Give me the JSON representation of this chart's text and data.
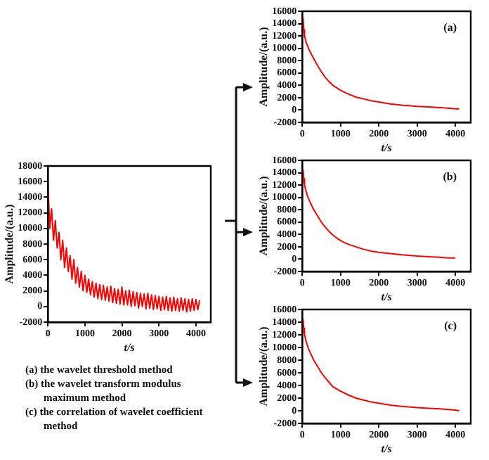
{
  "chart_data": [
    {
      "type": "line",
      "xlabel": "t/s",
      "ylabel": "Amplitude/(a.u.)",
      "x": [
        0,
        50,
        100,
        150,
        200,
        250,
        300,
        350,
        400,
        450,
        500,
        550,
        600,
        650,
        700,
        750,
        800,
        850,
        900,
        950,
        1000,
        1050,
        1100,
        1150,
        1200,
        1250,
        1300,
        1350,
        1400,
        1450,
        1500,
        1550,
        1600,
        1650,
        1700,
        1750,
        1800,
        1850,
        1900,
        1950,
        2000,
        2050,
        2100,
        2150,
        2200,
        2250,
        2300,
        2350,
        2400,
        2450,
        2500,
        2550,
        2600,
        2650,
        2700,
        2750,
        2800,
        2850,
        2900,
        2950,
        3000,
        3050,
        3100,
        3150,
        3200,
        3250,
        3300,
        3350,
        3400,
        3450,
        3500,
        3550,
        3600,
        3650,
        3700,
        3750,
        3800,
        3850,
        3900,
        3950,
        4000,
        4050,
        4100
      ],
      "series": [
        {
          "color": "#ff0000",
          "values": [
            16000,
            10000,
            12500,
            8500,
            11000,
            7500,
            9500,
            6000,
            8500,
            5000,
            7500,
            4500,
            6500,
            3500,
            6000,
            3000,
            5000,
            2500,
            4500,
            2000,
            4000,
            1800,
            3500,
            1500,
            3200,
            1200,
            3000,
            1000,
            2800,
            900,
            2700,
            800,
            2500,
            700,
            2600,
            500,
            2300,
            400,
            2200,
            300,
            2500,
            200,
            2000,
            200,
            2100,
            0,
            1900,
            100,
            1800,
            -200,
            1700,
            0,
            1600,
            -300,
            1700,
            -200,
            1500,
            -400,
            1400,
            -300,
            1300,
            -500,
            1200,
            -400,
            1300,
            -500,
            1100,
            -600,
            1200,
            -500,
            1000,
            -600,
            1100,
            -500,
            1000,
            -700,
            900,
            -600,
            1000,
            -500,
            900,
            -400,
            800
          ]
        }
      ],
      "xlim": [
        0,
        4400
      ],
      "xticks": [
        0,
        1000,
        2000,
        3000,
        4000
      ],
      "ylim": [
        -2000,
        18000
      ],
      "yticks": [
        -2000,
        0,
        2000,
        4000,
        6000,
        8000,
        10000,
        12000,
        14000,
        16000,
        18000
      ],
      "grid": false,
      "legend": false,
      "marker": "none",
      "annotations": [
        "(a) the wavelet threshold method",
        "(b) the wavelet transform modulus maximum method",
        "(c) the correlation of wavelet coefficient method"
      ]
    },
    {
      "type": "line",
      "xlabel": "t/s",
      "ylabel": "Amplitude/(a.u.)",
      "x": [
        20,
        40,
        60,
        100,
        150,
        200,
        300,
        400,
        500,
        600,
        700,
        800,
        1000,
        1200,
        1400,
        1600,
        1800,
        2000,
        2300,
        2600,
        3000,
        3300,
        3600,
        3800,
        4000,
        4100
      ],
      "series": [
        {
          "color": "#ff0000",
          "values": [
            15000,
            13000,
            12000,
            11000,
            10200,
            9500,
            8300,
            7200,
            6200,
            5300,
            4600,
            4000,
            3200,
            2600,
            2100,
            1800,
            1500,
            1300,
            1000,
            800,
            600,
            500,
            400,
            300,
            200,
            200
          ]
        }
      ],
      "xlim": [
        0,
        4400
      ],
      "xticks": [
        0,
        1000,
        2000,
        3000,
        4000
      ],
      "ylim": [
        -2000,
        16000
      ],
      "yticks": [
        -2000,
        0,
        2000,
        4000,
        6000,
        8000,
        10000,
        12000,
        14000,
        16000
      ],
      "grid": false,
      "legend": false,
      "marker": "none",
      "annotations": [
        "(a)"
      ]
    },
    {
      "type": "line",
      "xlabel": "t/s",
      "ylabel": "Amplitude/(a.u.)",
      "x": [
        20,
        40,
        60,
        100,
        150,
        200,
        300,
        400,
        500,
        600,
        700,
        800,
        1000,
        1200,
        1400,
        1600,
        1800,
        2000,
        2300,
        2600,
        3000,
        3300,
        3600,
        3800,
        4000
      ],
      "series": [
        {
          "color": "#ff0000",
          "values": [
            14500,
            13000,
            12000,
            11000,
            10000,
            9300,
            8000,
            7000,
            6000,
            5200,
            4500,
            3900,
            3000,
            2400,
            2000,
            1600,
            1300,
            1100,
            900,
            700,
            500,
            400,
            300,
            200,
            200
          ]
        }
      ],
      "xlim": [
        0,
        4400
      ],
      "xticks": [
        0,
        1000,
        2000,
        3000,
        4000
      ],
      "ylim": [
        -2000,
        16000
      ],
      "yticks": [
        -2000,
        0,
        2000,
        4000,
        6000,
        8000,
        10000,
        12000,
        14000,
        16000
      ],
      "grid": false,
      "legend": false,
      "marker": "none",
      "annotations": [
        "(b)"
      ]
    },
    {
      "type": "line",
      "xlabel": "t/s",
      "ylabel": "Amplitude/(a.u.)",
      "x": [
        20,
        40,
        60,
        100,
        150,
        200,
        300,
        400,
        500,
        600,
        700,
        800,
        1000,
        1200,
        1400,
        1600,
        1800,
        2000,
        2300,
        2600,
        3000,
        3300,
        3600,
        3800,
        4000,
        4100
      ],
      "series": [
        {
          "color": "#ff0000",
          "values": [
            14500,
            13000,
            12000,
            11000,
            10000,
            9300,
            8000,
            7000,
            6000,
            5200,
            4500,
            3800,
            3100,
            2500,
            2000,
            1700,
            1400,
            1200,
            900,
            700,
            500,
            400,
            300,
            200,
            100,
            0
          ]
        }
      ],
      "xlim": [
        0,
        4400
      ],
      "xticks": [
        0,
        1000,
        2000,
        3000,
        4000
      ],
      "ylim": [
        -2000,
        16000
      ],
      "yticks": [
        -2000,
        0,
        2000,
        4000,
        6000,
        8000,
        10000,
        12000,
        14000,
        16000
      ],
      "grid": false,
      "legend": false,
      "marker": "none",
      "annotations": [
        "(c)"
      ]
    }
  ]
}
